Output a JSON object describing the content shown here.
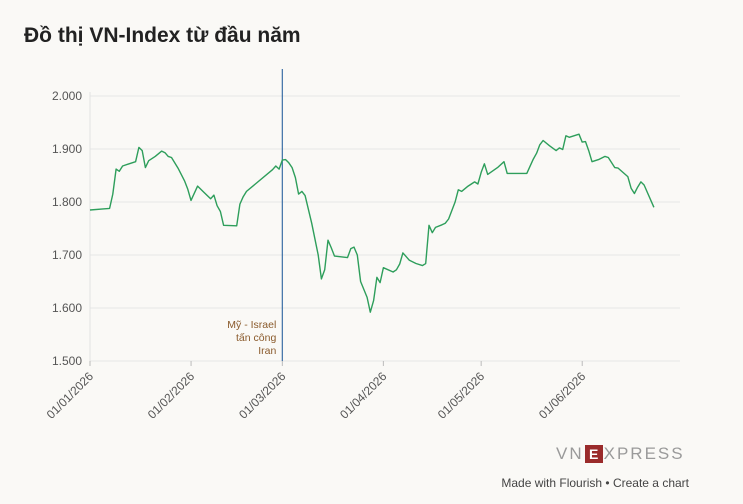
{
  "title": "Đồ thị VN-Index từ đầu năm",
  "logo": {
    "left": "VN",
    "mid": "E",
    "right": "XPRESS"
  },
  "footer": {
    "made_with": "Made with Flourish",
    "separator": " • ",
    "create": "Create a chart"
  },
  "colors": {
    "line": "#2e9e5b",
    "annotation_line": "#3a6ea5",
    "annotation_text": "#8a5a2b",
    "grid": "#e6e6e6"
  },
  "chart_data": {
    "type": "line",
    "title": "Đồ thị VN-Index từ đầu năm",
    "xlabel": "",
    "ylabel": "",
    "ylim": [
      1500,
      2000
    ],
    "yticks": [
      "1.500",
      "1.600",
      "1.700",
      "1.800",
      "1.900",
      "2.000"
    ],
    "xticks": [
      "01/01/2026",
      "01/02/2026",
      "01/03/2026",
      "01/04/2026",
      "01/05/2026",
      "01/06/2026"
    ],
    "grid": true,
    "annotation": {
      "date": "2026-03-01",
      "lines": [
        "Mỹ - Israel",
        "tấn công",
        "Iran"
      ]
    },
    "series": [
      {
        "points": [
          [
            "2026-01-01",
            1785
          ],
          [
            "2026-01-05",
            1787
          ],
          [
            "2026-01-07",
            1788
          ],
          [
            "2026-01-08",
            1815
          ],
          [
            "2026-01-09",
            1862
          ],
          [
            "2026-01-10",
            1858
          ],
          [
            "2026-01-11",
            1868
          ],
          [
            "2026-01-13",
            1872
          ],
          [
            "2026-01-15",
            1876
          ],
          [
            "2026-01-16",
            1903
          ],
          [
            "2026-01-17",
            1897
          ],
          [
            "2026-01-18",
            1865
          ],
          [
            "2026-01-19",
            1878
          ],
          [
            "2026-01-21",
            1886
          ],
          [
            "2026-01-23",
            1896
          ],
          [
            "2026-01-24",
            1893
          ],
          [
            "2026-01-25",
            1886
          ],
          [
            "2026-01-26",
            1884
          ],
          [
            "2026-01-28",
            1864
          ],
          [
            "2026-01-30",
            1840
          ],
          [
            "2026-01-31",
            1824
          ],
          [
            "2026-02-01",
            1803
          ],
          [
            "2026-02-03",
            1830
          ],
          [
            "2026-02-05",
            1818
          ],
          [
            "2026-02-07",
            1806
          ],
          [
            "2026-02-08",
            1813
          ],
          [
            "2026-02-09",
            1793
          ],
          [
            "2026-02-10",
            1782
          ],
          [
            "2026-02-11",
            1756
          ],
          [
            "2026-02-15",
            1755
          ],
          [
            "2026-02-16",
            1796
          ],
          [
            "2026-02-17",
            1810
          ],
          [
            "2026-02-18",
            1820
          ],
          [
            "2026-02-26",
            1861
          ],
          [
            "2026-02-27",
            1868
          ],
          [
            "2026-02-28",
            1862
          ],
          [
            "2026-03-01",
            1879
          ],
          [
            "2026-03-02",
            1880
          ],
          [
            "2026-03-03",
            1874
          ],
          [
            "2026-03-04",
            1865
          ],
          [
            "2026-03-05",
            1846
          ],
          [
            "2026-03-06",
            1815
          ],
          [
            "2026-03-07",
            1820
          ],
          [
            "2026-03-08",
            1812
          ],
          [
            "2026-03-10",
            1760
          ],
          [
            "2026-03-12",
            1700
          ],
          [
            "2026-03-13",
            1655
          ],
          [
            "2026-03-14",
            1672
          ],
          [
            "2026-03-15",
            1728
          ],
          [
            "2026-03-16",
            1714
          ],
          [
            "2026-03-17",
            1698
          ],
          [
            "2026-03-21",
            1695
          ],
          [
            "2026-03-22",
            1712
          ],
          [
            "2026-03-23",
            1715
          ],
          [
            "2026-03-24",
            1700
          ],
          [
            "2026-03-25",
            1650
          ],
          [
            "2026-03-27",
            1620
          ],
          [
            "2026-03-28",
            1592
          ],
          [
            "2026-03-29",
            1614
          ],
          [
            "2026-03-30",
            1658
          ],
          [
            "2026-03-31",
            1648
          ],
          [
            "2026-04-01",
            1676
          ],
          [
            "2026-04-04",
            1668
          ],
          [
            "2026-04-05",
            1672
          ],
          [
            "2026-04-06",
            1683
          ],
          [
            "2026-04-07",
            1704
          ],
          [
            "2026-04-09",
            1690
          ],
          [
            "2026-04-11",
            1684
          ],
          [
            "2026-04-13",
            1680
          ],
          [
            "2026-04-14",
            1684
          ],
          [
            "2026-04-15",
            1756
          ],
          [
            "2026-04-16",
            1742
          ],
          [
            "2026-04-17",
            1752
          ],
          [
            "2026-04-19",
            1757
          ],
          [
            "2026-04-20",
            1760
          ],
          [
            "2026-04-21",
            1768
          ],
          [
            "2026-04-23",
            1800
          ],
          [
            "2026-04-24",
            1823
          ],
          [
            "2026-04-25",
            1820
          ],
          [
            "2026-04-27",
            1830
          ],
          [
            "2026-04-29",
            1838
          ],
          [
            "2026-04-30",
            1834
          ],
          [
            "2026-05-01",
            1856
          ],
          [
            "2026-05-02",
            1872
          ],
          [
            "2026-05-03",
            1852
          ],
          [
            "2026-05-06",
            1865
          ],
          [
            "2026-05-08",
            1876
          ],
          [
            "2026-05-09",
            1854
          ],
          [
            "2026-05-15",
            1854
          ],
          [
            "2026-05-17",
            1881
          ],
          [
            "2026-05-18",
            1892
          ],
          [
            "2026-05-19",
            1908
          ],
          [
            "2026-05-20",
            1916
          ],
          [
            "2026-05-22",
            1906
          ],
          [
            "2026-05-24",
            1897
          ],
          [
            "2026-05-25",
            1902
          ],
          [
            "2026-05-26",
            1899
          ],
          [
            "2026-05-27",
            1925
          ],
          [
            "2026-05-28",
            1922
          ],
          [
            "2026-05-31",
            1928
          ],
          [
            "2026-06-01",
            1913
          ],
          [
            "2026-06-02",
            1914
          ],
          [
            "2026-06-03",
            1897
          ],
          [
            "2026-06-04",
            1876
          ],
          [
            "2026-06-06",
            1880
          ],
          [
            "2026-06-08",
            1886
          ],
          [
            "2026-06-09",
            1884
          ],
          [
            "2026-06-11",
            1865
          ],
          [
            "2026-06-12",
            1864
          ],
          [
            "2026-06-15",
            1848
          ],
          [
            "2026-06-16",
            1826
          ],
          [
            "2026-06-17",
            1816
          ],
          [
            "2026-06-18",
            1828
          ],
          [
            "2026-06-19",
            1838
          ],
          [
            "2026-06-20",
            1832
          ],
          [
            "2026-06-23",
            1790
          ]
        ]
      }
    ]
  }
}
